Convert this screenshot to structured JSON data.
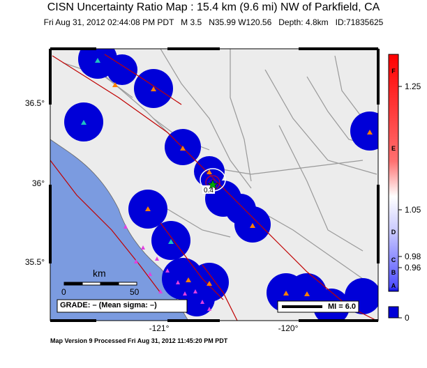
{
  "header": {
    "title": "CISN Uncertainty Ratio Map : 15.4 km (9.6 mi) NW of Parkfield, CA",
    "subtitle": "Fri Aug 31, 2012 02:44:08 PM PDT   M 3.5   N35.99 W120.56   Depth: 4.8km   ID:71835625"
  },
  "axes": {
    "lat_labels": [
      "36.5°",
      "36°",
      "35.5°"
    ],
    "lon_labels": [
      "-121°",
      "-120°"
    ]
  },
  "scale_bar": {
    "unit": "km",
    "start": "0",
    "end": "50"
  },
  "grade_box": {
    "text": "GRADE: – (Mean sigma: –)"
  },
  "mi_legend": {
    "text": "MI = 6.0"
  },
  "contour_label": "0.4",
  "colorbar": {
    "values": [
      "1.25",
      "1.05",
      "0.98",
      "0.96",
      "0"
    ],
    "grades": [
      "F",
      "E",
      "D",
      "C",
      "B",
      "A"
    ]
  },
  "footer": {
    "text": "Map Version 9 Processed Fri Aug 31, 2012 11:45:20 PM PDT"
  },
  "colors": {
    "land": "#ececec",
    "ocean": "#7b9be0",
    "station_halo": "#0000d8",
    "fault": "#c00000",
    "road": "#999999",
    "station_orange": "#ff8000",
    "station_magenta": "#e040e0",
    "station_cyan": "#20c0c0"
  }
}
